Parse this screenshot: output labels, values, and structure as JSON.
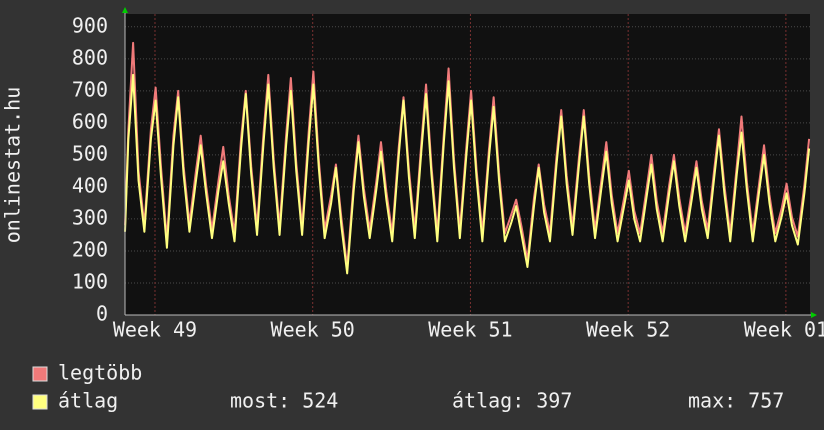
{
  "chart_data": {
    "type": "line",
    "y_label": "onlinestat.hu",
    "x": [
      0,
      0.15,
      0.36,
      0.6,
      0.86,
      1.15,
      1.36,
      1.6,
      1.86,
      2.15,
      2.36,
      2.6,
      2.86,
      3.15,
      3.36,
      3.6,
      3.86,
      4.15,
      4.36,
      4.6,
      4.86,
      5.15,
      5.36,
      5.6,
      5.86,
      6.15,
      6.36,
      6.6,
      6.86,
      7.15,
      7.36,
      7.6,
      7.86,
      8.15,
      8.36,
      8.6,
      8.86,
      9.15,
      9.36,
      9.6,
      9.86,
      10.15,
      10.36,
      10.6,
      10.86,
      11.15,
      11.36,
      11.6,
      11.86,
      12.15,
      12.36,
      12.6,
      12.86,
      13.15,
      13.36,
      13.6,
      13.86,
      14.15,
      14.36,
      14.6,
      14.86,
      15.15,
      15.36,
      15.6,
      15.86,
      16.15,
      16.36,
      16.6,
      16.86,
      17.15,
      17.36,
      17.6,
      17.86,
      18.15,
      18.36,
      18.6,
      18.86,
      19.15,
      19.36,
      19.6,
      19.86,
      20.15,
      20.36,
      20.6,
      20.86,
      21.15,
      21.36,
      21.6,
      21.86,
      22.15,
      22.36,
      22.6,
      22.86,
      23.15,
      23.36,
      23.6,
      23.86,
      24.15,
      24.36,
      24.6,
      24.86,
      25.15,
      25.36,
      25.6,
      25.86,
      26.15,
      26.36,
      26.6,
      26.86,
      27.15,
      27.36,
      27.6,
      27.86,
      28.15,
      28.36,
      28.6,
      28.86,
      29.15,
      29.36,
      29.6,
      29.86,
      30.15,
      30.36
    ],
    "series": [
      {
        "name": "legtöbb",
        "color": "#f07a7a",
        "values": [
          280,
          580,
          850,
          450,
          280,
          580,
          710,
          460,
          235,
          560,
          700,
          465,
          285,
          450,
          560,
          405,
          265,
          420,
          525,
          375,
          255,
          550,
          700,
          465,
          275,
          570,
          750,
          485,
          275,
          560,
          740,
          475,
          275,
          570,
          760,
          485,
          265,
          375,
          470,
          305,
          150,
          415,
          560,
          395,
          265,
          415,
          540,
          385,
          255,
          525,
          680,
          455,
          265,
          535,
          720,
          465,
          255,
          565,
          770,
          485,
          265,
          525,
          700,
          455,
          255,
          515,
          680,
          445,
          255,
          315,
          360,
          275,
          170,
          365,
          470,
          345,
          255,
          495,
          640,
          435,
          275,
          495,
          640,
          435,
          265,
          425,
          540,
          375,
          255,
          365,
          450,
          325,
          255,
          395,
          500,
          355,
          255,
          405,
          500,
          365,
          255,
          385,
          480,
          355,
          265,
          455,
          580,
          405,
          255,
          465,
          620,
          415,
          255,
          415,
          530,
          375,
          255,
          335,
          410,
          305,
          245,
          405,
          550
        ]
      },
      {
        "name": "átlag",
        "color": "#ffff80",
        "values": [
          260,
          550,
          750,
          420,
          260,
          550,
          670,
          430,
          210,
          530,
          680,
          440,
          260,
          420,
          530,
          380,
          240,
          390,
          480,
          350,
          230,
          520,
          690,
          440,
          250,
          540,
          720,
          460,
          250,
          530,
          700,
          450,
          250,
          540,
          720,
          460,
          240,
          350,
          460,
          280,
          130,
          390,
          540,
          370,
          240,
          390,
          510,
          360,
          230,
          500,
          670,
          430,
          240,
          510,
          690,
          440,
          230,
          540,
          730,
          460,
          240,
          500,
          670,
          430,
          230,
          490,
          650,
          420,
          230,
          290,
          340,
          250,
          150,
          340,
          460,
          320,
          230,
          470,
          620,
          410,
          250,
          470,
          620,
          410,
          240,
          400,
          510,
          350,
          230,
          340,
          420,
          300,
          230,
          370,
          470,
          330,
          230,
          380,
          480,
          340,
          230,
          360,
          460,
          330,
          240,
          430,
          560,
          380,
          230,
          440,
          570,
          390,
          230,
          390,
          500,
          350,
          230,
          310,
          380,
          280,
          220,
          380,
          520
        ]
      }
    ],
    "xlim": [
      0,
      30.4
    ],
    "ylim": [
      0,
      940
    ],
    "xticks": [
      {
        "value": 1.33,
        "label": "Week 49"
      },
      {
        "value": 8.33,
        "label": "Week 50"
      },
      {
        "value": 15.33,
        "label": "Week 51"
      },
      {
        "value": 22.33,
        "label": "Week 52"
      },
      {
        "value": 29.33,
        "label": "Week 01"
      }
    ],
    "yticks": [
      0,
      100,
      200,
      300,
      400,
      500,
      600,
      700,
      800,
      900
    ],
    "grid": true,
    "stats": [
      {
        "label": "most:",
        "value": 524
      },
      {
        "label": "átlag:",
        "value": 397
      },
      {
        "label": "max:",
        "value": 757
      }
    ]
  }
}
